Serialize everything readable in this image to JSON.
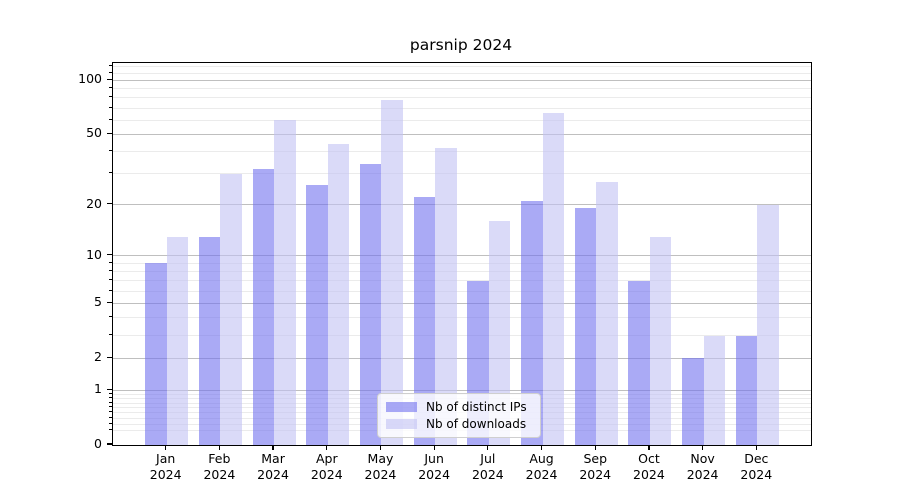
{
  "chart_data": {
    "type": "bar",
    "title": "parsnip 2024",
    "categories": [
      "Jan 2024",
      "Feb 2024",
      "Mar 2024",
      "Apr 2024",
      "May 2024",
      "Jun 2024",
      "Jul 2024",
      "Aug 2024",
      "Sep 2024",
      "Oct 2024",
      "Nov 2024",
      "Dec 2024"
    ],
    "series": [
      {
        "name": "Nb of distinct IPs",
        "color": "rgba(113,113,238,0.6)",
        "solid_color": "#aaaaf0",
        "values": [
          9,
          13,
          32,
          26,
          34,
          22,
          7,
          21,
          19,
          7,
          2,
          3
        ]
      },
      {
        "name": "Nb of downloads",
        "color": "rgba(193,193,243,0.6)",
        "solid_color": "#dadaf8",
        "values": [
          13,
          30,
          60,
          44,
          78,
          42,
          16,
          66,
          27,
          13,
          3,
          20
        ]
      }
    ],
    "yscale": "log1p",
    "ylim": [
      0,
      125
    ],
    "y_major_ticks": [
      100,
      50,
      20,
      10,
      5,
      2,
      1,
      0
    ],
    "y_minor_gridlines": [
      0.2,
      0.3,
      0.4,
      0.5,
      0.6,
      0.7,
      0.8,
      0.9,
      3,
      4,
      6,
      7,
      8,
      9,
      30,
      40,
      60,
      70,
      80,
      90,
      110,
      120
    ],
    "grid": true,
    "xlabel": "",
    "ylabel": "",
    "legend_position": "inside-bottom-center"
  },
  "colors": {
    "major_grid": "#bfbfbf",
    "minor_grid": "#ebebeb",
    "spine": "#000000",
    "background": "#ffffff",
    "text": "#000000"
  }
}
